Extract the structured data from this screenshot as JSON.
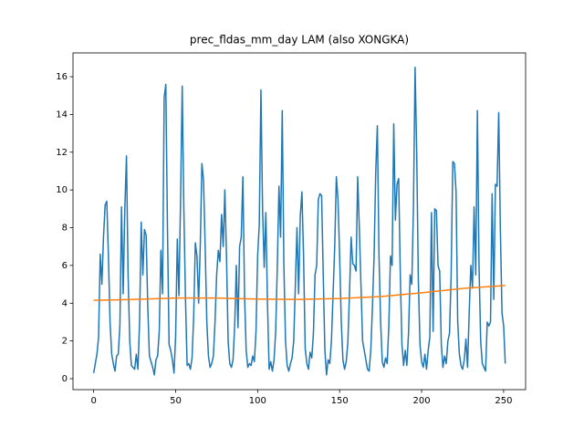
{
  "chart_data": {
    "type": "line",
    "title": "prec_fldas_mm_day LAM (also XONGKA)",
    "x": [
      0,
      1,
      2,
      3,
      4,
      5,
      6,
      7,
      8,
      9,
      10,
      11,
      12,
      13,
      14,
      15,
      16,
      17,
      18,
      19,
      20,
      21,
      22,
      23,
      24,
      25,
      26,
      27,
      28,
      29,
      30,
      31,
      32,
      33,
      34,
      35,
      36,
      37,
      38,
      39,
      40,
      41,
      42,
      43,
      44,
      45,
      46,
      47,
      48,
      49,
      50,
      51,
      52,
      53,
      54,
      55,
      56,
      57,
      58,
      59,
      60,
      61,
      62,
      63,
      64,
      65,
      66,
      67,
      68,
      69,
      70,
      71,
      72,
      73,
      74,
      75,
      76,
      77,
      78,
      79,
      80,
      81,
      82,
      83,
      84,
      85,
      86,
      87,
      88,
      89,
      90,
      91,
      92,
      93,
      94,
      95,
      96,
      97,
      98,
      99,
      100,
      101,
      102,
      103,
      104,
      105,
      106,
      107,
      108,
      109,
      110,
      111,
      112,
      113,
      114,
      115,
      116,
      117,
      118,
      119,
      120,
      121,
      122,
      123,
      124,
      125,
      126,
      127,
      128,
      129,
      130,
      131,
      132,
      133,
      134,
      135,
      136,
      137,
      138,
      139,
      140,
      141,
      142,
      143,
      144,
      145,
      146,
      147,
      148,
      149,
      150,
      151,
      152,
      153,
      154,
      155,
      156,
      157,
      158,
      159,
      160,
      161,
      162,
      163,
      164,
      165,
      166,
      167,
      168,
      169,
      170,
      171,
      172,
      173,
      174,
      175,
      176,
      177,
      178,
      179,
      180,
      181,
      182,
      183,
      184,
      185,
      186,
      187,
      188,
      189,
      190,
      191,
      192,
      193,
      194,
      195,
      196,
      197,
      198,
      199,
      200,
      201,
      202,
      203,
      204,
      205,
      206,
      207,
      208,
      209,
      210,
      211,
      212,
      213,
      214,
      215,
      216,
      217,
      218,
      219,
      220,
      221,
      222,
      223,
      224,
      225,
      226,
      227,
      228,
      229,
      230,
      231,
      232,
      233,
      234,
      235,
      236,
      237,
      238,
      239,
      240,
      241,
      242,
      243,
      244,
      245,
      246,
      247,
      248,
      249,
      250,
      251
    ],
    "series": [
      {
        "color": "#1f77b4",
        "values": [
          0.3,
          0.8,
          1.3,
          2.2,
          6.6,
          5.0,
          7.5,
          9.2,
          9.4,
          6.5,
          3.0,
          1.3,
          0.8,
          0.4,
          1.2,
          1.3,
          2.8,
          9.1,
          4.5,
          9.0,
          11.8,
          5.5,
          2.0,
          0.7,
          0.6,
          0.5,
          1.3,
          0.5,
          3.0,
          8.3,
          5.5,
          7.9,
          7.6,
          3.8,
          1.2,
          0.9,
          0.6,
          0.2,
          1.0,
          1.2,
          2.5,
          6.8,
          4.5,
          14.9,
          15.6,
          8.0,
          1.8,
          1.5,
          1.0,
          0.3,
          2.3,
          7.4,
          4.4,
          9.5,
          15.5,
          9.0,
          4.2,
          0.7,
          0.8,
          0.5,
          1.1,
          3.3,
          7.2,
          6.5,
          4.0,
          7.0,
          11.4,
          10.5,
          7.0,
          3.0,
          1.2,
          0.6,
          0.8,
          1.2,
          3.0,
          5.5,
          6.8,
          6.2,
          8.7,
          7.0,
          10.0,
          6.5,
          2.0,
          0.8,
          0.6,
          1.0,
          2.8,
          6.0,
          2.7,
          7.0,
          7.5,
          10.7,
          4.5,
          1.5,
          0.6,
          0.8,
          0.7,
          1.2,
          0.9,
          2.5,
          6.5,
          8.2,
          15.3,
          9.0,
          5.9,
          8.8,
          4.0,
          0.5,
          0.9,
          0.4,
          1.0,
          2.5,
          6.0,
          10.2,
          7.5,
          14.2,
          6.0,
          2.0,
          0.7,
          0.4,
          0.8,
          1.1,
          2.0,
          5.0,
          8.0,
          4.5,
          8.6,
          9.9,
          6.5,
          1.6,
          0.8,
          0.5,
          1.4,
          1.1,
          2.4,
          5.5,
          6.0,
          9.5,
          9.8,
          9.7,
          5.5,
          1.5,
          0.2,
          1.0,
          0.8,
          2.0,
          4.5,
          7.0,
          10.7,
          9.5,
          6.5,
          3.0,
          1.0,
          0.5,
          0.9,
          1.9,
          4.5,
          7.5,
          6.1,
          6.0,
          5.7,
          10.7,
          8.0,
          5.0,
          2.0,
          1.5,
          1.0,
          0.5,
          0.4,
          1.5,
          3.8,
          6.5,
          10.9,
          13.4,
          6.5,
          3.0,
          0.9,
          0.6,
          1.1,
          0.8,
          2.8,
          6.5,
          6.0,
          13.5,
          8.4,
          10.3,
          10.6,
          5.5,
          1.8,
          0.7,
          1.5,
          0.7,
          2.4,
          5.5,
          5.0,
          9.0,
          16.5,
          12.0,
          5.2,
          1.8,
          0.9,
          0.6,
          1.3,
          0.5,
          1.5,
          2.2,
          8.8,
          2.5,
          9.0,
          8.9,
          6.0,
          5.7,
          1.8,
          0.6,
          1.2,
          0.8,
          2.0,
          2.4,
          5.5,
          11.5,
          11.4,
          9.9,
          3.0,
          1.3,
          0.7,
          0.5,
          1.0,
          2.1,
          0.6,
          3.5,
          6.0,
          4.8,
          9.1,
          5.5,
          14.2,
          6.0,
          2.0,
          0.8,
          0.6,
          0.4,
          3.0,
          2.8,
          3.0,
          9.8,
          4.2,
          10.3,
          10.2,
          14.1,
          8.0,
          3.5,
          2.8,
          0.8
        ]
      },
      {
        "color": "#ff7f0e",
        "x": [
          0,
          25,
          50,
          75,
          100,
          125,
          150,
          175,
          200,
          225,
          250,
          251
        ],
        "values": [
          4.15,
          4.2,
          4.27,
          4.27,
          4.22,
          4.2,
          4.25,
          4.35,
          4.55,
          4.78,
          4.93,
          4.95
        ]
      }
    ],
    "xlim": [
      -12.6,
      263.4
    ],
    "ylim": [
      -0.58,
      17.26
    ],
    "xticks": [
      0,
      50,
      100,
      150,
      200,
      250
    ],
    "yticks": [
      0,
      2,
      4,
      6,
      8,
      10,
      12,
      14,
      16
    ]
  }
}
